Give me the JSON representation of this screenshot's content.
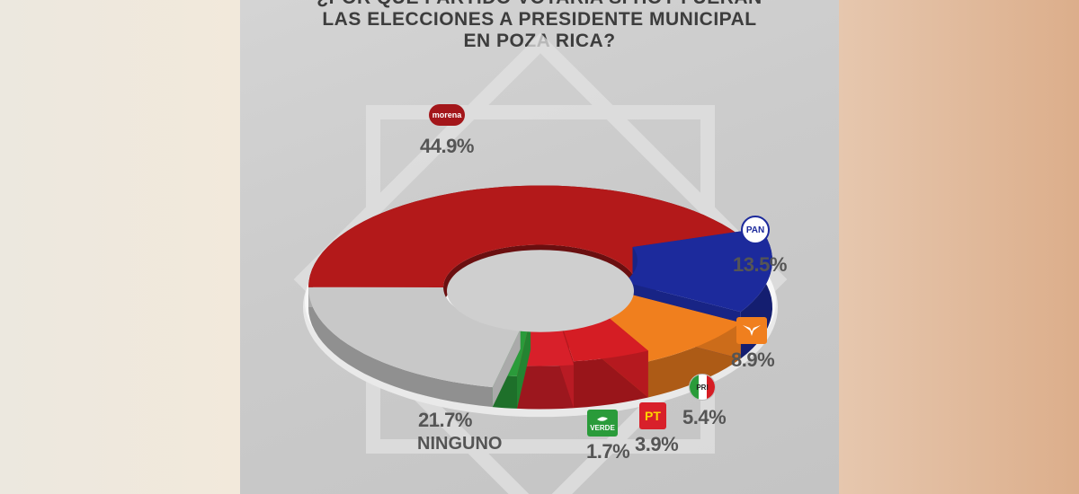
{
  "title_lines": [
    "¿POR QUÉ PARTIDO VOTARÍA SI HOY FUERAN",
    "LAS ELECCIONES A PRESIDENTE MUNICIPAL",
    "EN POZA RICA?"
  ],
  "chart_data": {
    "type": "pie",
    "title": "¿POR QUÉ PARTIDO VOTARÍA SI HOY FUERAN LAS ELECCIONES A PRESIDENTE MUNICIPAL EN POZA RICA?",
    "categories": [
      "morena",
      "PAN",
      "MC",
      "PRI",
      "PT",
      "VERDE",
      "NINGUNO"
    ],
    "values": [
      44.9,
      13.5,
      8.9,
      5.4,
      3.9,
      1.7,
      21.7
    ],
    "labels": [
      "44.9%",
      "13.5%",
      "8.9%",
      "5.4%",
      "3.9%",
      "1.7%",
      "21.7%"
    ],
    "colors": [
      "#b3191a",
      "#1c2a9c",
      "#f07f1e",
      "#d51d24",
      "#d8202a",
      "#2a9b3a",
      "#c8c8c8"
    ]
  },
  "logos": {
    "morena": "morena",
    "pan": "PAN",
    "pri": "PRI",
    "pt": "PT",
    "verde": "VERDE"
  },
  "ninguno_label": "NINGUNO"
}
